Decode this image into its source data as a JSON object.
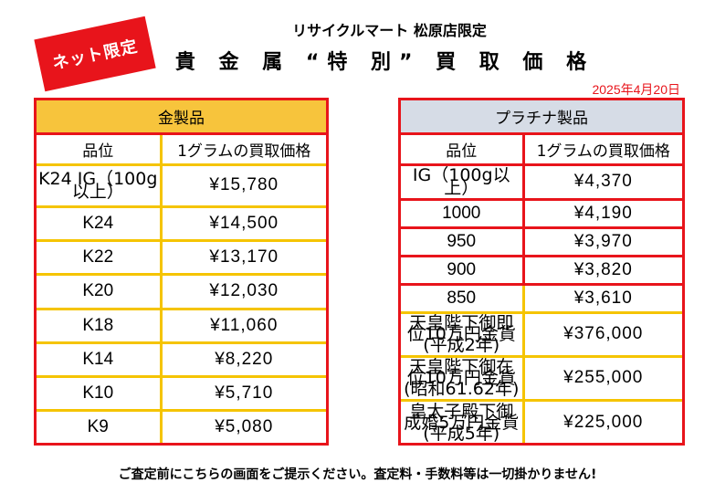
{
  "badge": "ネット限定",
  "store_line": "リサイクルマート 松原店限定",
  "title": "貴 金 属 “特 別” 買 取 価 格",
  "date": "2025年4月20日",
  "gold": {
    "heading": "金製品",
    "col_grade": "品位",
    "col_price": "1グラムの買取価格",
    "rows": [
      {
        "grade": "K24 IG（100g以上）",
        "price": "¥15,780"
      },
      {
        "grade": "K24",
        "price": "¥14,500"
      },
      {
        "grade": "K22",
        "price": "¥13,170"
      },
      {
        "grade": "K20",
        "price": "¥12,030"
      },
      {
        "grade": "K18",
        "price": "¥11,060"
      },
      {
        "grade": "K14",
        "price": "¥8,220"
      },
      {
        "grade": "K10",
        "price": "¥5,710"
      },
      {
        "grade": "K9",
        "price": "¥5,080"
      }
    ]
  },
  "platinum": {
    "heading": "プラチナ製品",
    "col_grade": "品位",
    "col_price": "1グラムの買取価格",
    "rows": [
      {
        "grade": "IG（100g以上）",
        "price": "¥4,370"
      },
      {
        "grade": "1000",
        "price": "¥4,190"
      },
      {
        "grade": "950",
        "price": "¥3,970"
      },
      {
        "grade": "900",
        "price": "¥3,820"
      },
      {
        "grade": "850",
        "price": "¥3,610"
      },
      {
        "grade": "天皇陛下御即位10万円金貨(平成2年)",
        "price": "¥376,000"
      },
      {
        "grade": "天皇陛下御在位10万円金貨(昭和61.62年)",
        "price": "¥255,000"
      },
      {
        "grade": "皇太子殿下御成婚5万円金貨(平成5年)",
        "price": "¥225,000"
      }
    ]
  },
  "footer": "ご査定前にこちらの画面をご提示ください。査定料・手数料等は一切掛かりません!",
  "colors": {
    "red": "#e8141b",
    "gold_header": "#f7c43c",
    "platinum_header": "#d6dce6",
    "yellow_rule": "#f5c400"
  }
}
